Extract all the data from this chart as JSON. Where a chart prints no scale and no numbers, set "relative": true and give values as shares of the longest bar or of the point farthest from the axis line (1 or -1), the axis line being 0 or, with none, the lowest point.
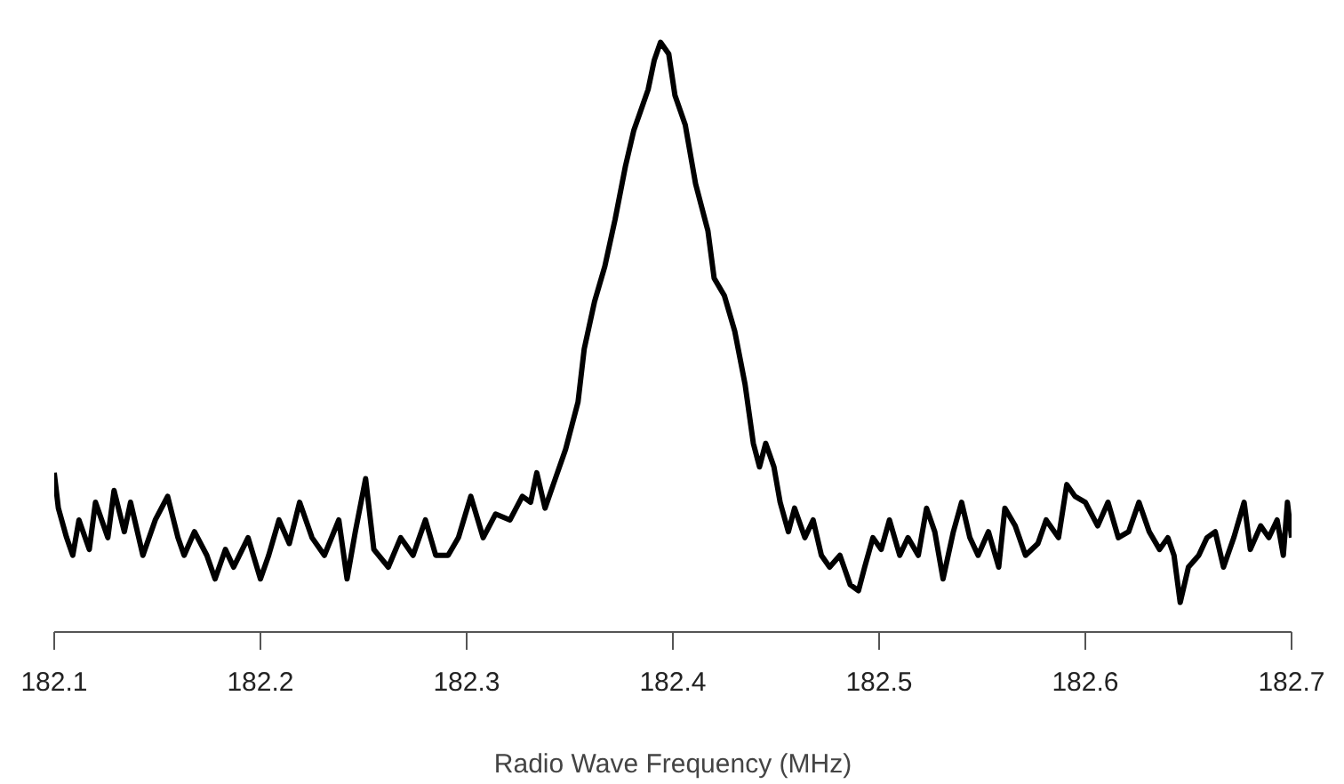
{
  "chart_data": {
    "type": "line",
    "relative": true,
    "xlabel": "Radio Wave Frequency (MHz)",
    "xlim": [
      182.1,
      182.7
    ],
    "xticks": [
      182.1,
      182.2,
      182.3,
      182.4,
      182.5,
      182.6,
      182.7
    ],
    "grid": false,
    "series": [
      {
        "color": "#000000",
        "x": [
          182.1,
          182.102,
          182.106,
          182.109,
          182.112,
          182.117,
          182.12,
          182.126,
          182.129,
          182.134,
          182.137,
          182.143,
          182.149,
          182.155,
          182.16,
          182.163,
          182.168,
          182.174,
          182.178,
          182.183,
          182.187,
          182.194,
          182.2,
          182.204,
          182.209,
          182.214,
          182.219,
          182.225,
          182.231,
          182.238,
          182.242,
          182.246,
          182.251,
          182.255,
          182.262,
          182.268,
          182.274,
          182.28,
          182.285,
          182.291,
          182.296,
          182.302,
          182.308,
          182.314,
          182.321,
          182.327,
          182.331,
          182.334,
          182.338,
          182.342,
          182.348,
          182.354,
          182.357,
          182.362,
          182.367,
          182.372,
          182.377,
          182.381,
          182.384,
          182.388,
          182.391,
          182.394,
          182.398,
          182.401,
          182.406,
          182.411,
          182.417,
          182.42,
          182.425,
          182.43,
          182.435,
          182.439,
          182.442,
          182.445,
          182.449,
          182.452,
          182.456,
          182.459,
          182.464,
          182.468,
          182.472,
          182.476,
          182.481,
          182.486,
          182.49,
          182.493,
          182.497,
          182.501,
          182.505,
          182.51,
          182.514,
          182.519,
          182.523,
          182.527,
          182.531,
          182.536,
          182.54,
          182.544,
          182.548,
          182.553,
          182.558,
          182.561,
          182.566,
          182.571,
          182.577,
          182.581,
          182.587,
          182.591,
          182.595,
          182.6,
          182.606,
          182.611,
          182.616,
          182.621,
          182.626,
          182.631,
          182.636,
          182.64,
          182.643,
          182.646,
          182.65,
          182.655,
          182.659,
          182.663,
          182.667,
          182.672,
          182.677,
          182.68,
          182.685,
          182.689,
          182.693,
          182.696,
          182.698,
          182.7
        ],
        "values": [
          0.27,
          0.21,
          0.16,
          0.13,
          0.19,
          0.14,
          0.22,
          0.16,
          0.24,
          0.17,
          0.22,
          0.13,
          0.19,
          0.23,
          0.16,
          0.13,
          0.17,
          0.13,
          0.09,
          0.14,
          0.11,
          0.16,
          0.09,
          0.13,
          0.19,
          0.15,
          0.22,
          0.16,
          0.13,
          0.19,
          0.09,
          0.17,
          0.26,
          0.14,
          0.11,
          0.16,
          0.13,
          0.19,
          0.13,
          0.13,
          0.16,
          0.23,
          0.16,
          0.2,
          0.19,
          0.23,
          0.22,
          0.27,
          0.21,
          0.25,
          0.31,
          0.39,
          0.48,
          0.56,
          0.62,
          0.7,
          0.79,
          0.85,
          0.88,
          0.92,
          0.97,
          1.0,
          0.98,
          0.91,
          0.86,
          0.76,
          0.68,
          0.6,
          0.57,
          0.51,
          0.42,
          0.32,
          0.28,
          0.32,
          0.28,
          0.22,
          0.17,
          0.21,
          0.16,
          0.19,
          0.13,
          0.11,
          0.13,
          0.08,
          0.07,
          0.11,
          0.16,
          0.14,
          0.19,
          0.13,
          0.16,
          0.13,
          0.21,
          0.17,
          0.09,
          0.17,
          0.22,
          0.16,
          0.13,
          0.17,
          0.11,
          0.21,
          0.18,
          0.13,
          0.15,
          0.19,
          0.16,
          0.25,
          0.23,
          0.22,
          0.18,
          0.22,
          0.16,
          0.17,
          0.22,
          0.17,
          0.14,
          0.16,
          0.13,
          0.05,
          0.11,
          0.13,
          0.16,
          0.17,
          0.11,
          0.16,
          0.22,
          0.14,
          0.18,
          0.16,
          0.19,
          0.13,
          0.22,
          0.16
        ]
      }
    ]
  }
}
